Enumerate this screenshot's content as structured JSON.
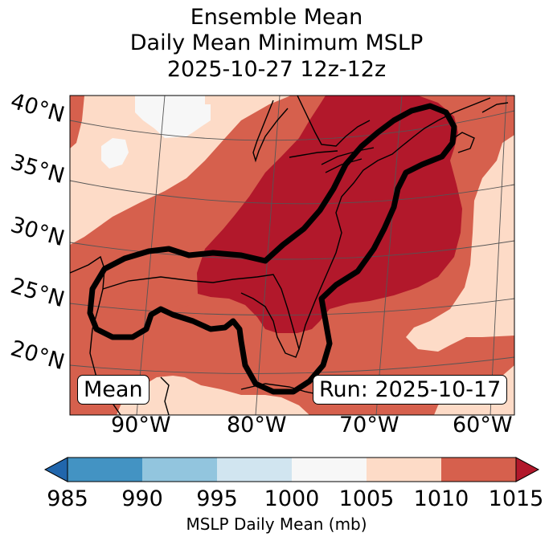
{
  "title": {
    "line1": "Ensemble Mean",
    "line2": "Daily Mean Minimum MSLP",
    "line3": "2025-10-27 12z-12z"
  },
  "map": {
    "lat_labels": [
      "40°N",
      "35°N",
      "30°N",
      "25°N",
      "20°N"
    ],
    "lon_labels": [
      "90°W",
      "80°W",
      "70°W",
      "60°W"
    ],
    "legend_left": "Mean",
    "legend_right": "Run: 2025-10-17"
  },
  "colorbar": {
    "ticks": [
      "985",
      "990",
      "995",
      "1000",
      "1005",
      "1010",
      "1015"
    ],
    "label": "MSLP Daily Mean (mb)",
    "colors": {
      "under": "#2166ac",
      "c985_990": "#4393c3",
      "c990_995": "#92c5de",
      "c995_1000": "#d1e5f0",
      "c1000_1005": "#f7f7f7",
      "c1005_1010": "#fddbc7",
      "c1010_1015": "#d6604d",
      "over": "#b2182b"
    }
  },
  "fill_colors": {
    "high": "#b2182b",
    "mid": "#d6604d",
    "low": "#fddbc7",
    "lowest": "#f7f7f7"
  }
}
